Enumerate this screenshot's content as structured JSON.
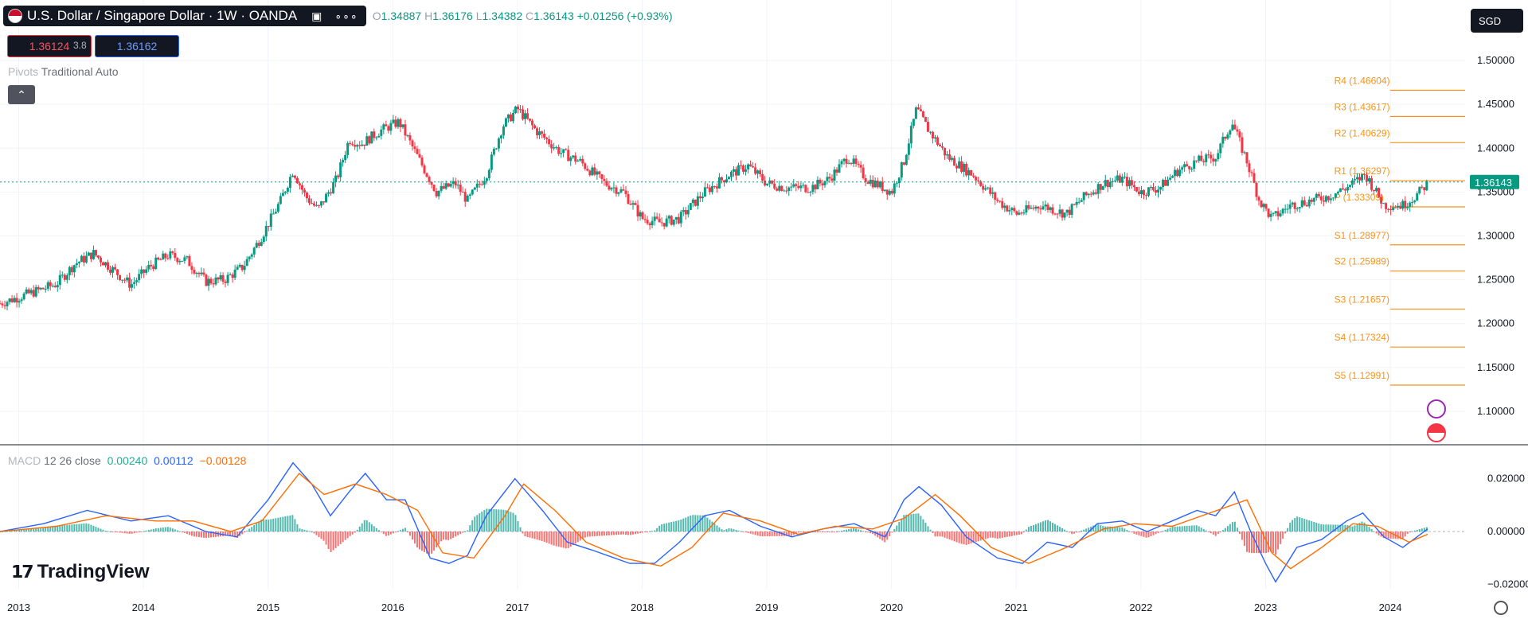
{
  "header": {
    "symbol_title": "U.S. Dollar / Singapore Dollar · 1W · OANDA",
    "ohlc": {
      "o_label": "O",
      "o": "1.34887",
      "h_label": "H",
      "h": "1.36176",
      "l_label": "L",
      "l": "1.34382",
      "c_label": "C",
      "c": "1.36143",
      "change": "+0.01256 (+0.93%)"
    },
    "sell_price": "1.36124",
    "spread": "3.8",
    "buy_price": "1.36162",
    "pivots_label": "Pivots",
    "pivots_params": "Traditional Auto",
    "currency": "SGD"
  },
  "macd_legend": {
    "name": "MACD",
    "params": "12 26 close",
    "hist": "0.00240",
    "macd": "0.00112",
    "signal": "−0.00128"
  },
  "watermark": "TradingView",
  "colors": {
    "up": "#089981",
    "down": "#f23645",
    "pivot": "#f7931a",
    "macd_line": "#2962ff",
    "signal_line": "#ff6d00",
    "current_price_bg": "#089981"
  },
  "chart_data": [
    {
      "type": "candlestick",
      "title": "U.S. Dollar / Singapore Dollar · 1W · OANDA",
      "x_ticks": [
        "2013",
        "2014",
        "2015",
        "2016",
        "2017",
        "2018",
        "2019",
        "2020",
        "2021",
        "2022",
        "2023",
        "2024"
      ],
      "y_ticks": [
        "1.50000",
        "1.45000",
        "1.40000",
        "1.35000",
        "1.30000",
        "1.25000",
        "1.20000",
        "1.15000",
        "1.10000"
      ],
      "ylim": [
        1.07,
        1.52
      ],
      "xlim": [
        2012.85,
        2024.6
      ],
      "current_price": "1.36143",
      "approx_close_path": [
        [
          2012.85,
          1.223
        ],
        [
          2013.1,
          1.235
        ],
        [
          2013.3,
          1.245
        ],
        [
          2013.45,
          1.268
        ],
        [
          2013.6,
          1.28
        ],
        [
          2013.75,
          1.262
        ],
        [
          2013.9,
          1.244
        ],
        [
          2014.05,
          1.265
        ],
        [
          2014.2,
          1.278
        ],
        [
          2014.35,
          1.272
        ],
        [
          2014.5,
          1.248
        ],
        [
          2014.65,
          1.25
        ],
        [
          2014.8,
          1.265
        ],
        [
          2014.95,
          1.3
        ],
        [
          2015.1,
          1.34
        ],
        [
          2015.2,
          1.375
        ],
        [
          2015.3,
          1.345
        ],
        [
          2015.4,
          1.33
        ],
        [
          2015.55,
          1.365
        ],
        [
          2015.65,
          1.41
        ],
        [
          2015.75,
          1.405
        ],
        [
          2015.9,
          1.42
        ],
        [
          2016.05,
          1.43
        ],
        [
          2016.2,
          1.39
        ],
        [
          2016.35,
          1.35
        ],
        [
          2016.5,
          1.36
        ],
        [
          2016.6,
          1.34
        ],
        [
          2016.75,
          1.37
        ],
        [
          2016.88,
          1.425
        ],
        [
          2017.0,
          1.445
        ],
        [
          2017.15,
          1.42
        ],
        [
          2017.35,
          1.395
        ],
        [
          2017.5,
          1.385
        ],
        [
          2017.7,
          1.36
        ],
        [
          2017.85,
          1.35
        ],
        [
          2018.0,
          1.32
        ],
        [
          2018.15,
          1.315
        ],
        [
          2018.3,
          1.32
        ],
        [
          2018.5,
          1.35
        ],
        [
          2018.7,
          1.37
        ],
        [
          2018.85,
          1.38
        ],
        [
          2019.0,
          1.36
        ],
        [
          2019.15,
          1.355
        ],
        [
          2019.35,
          1.355
        ],
        [
          2019.5,
          1.365
        ],
        [
          2019.65,
          1.39
        ],
        [
          2019.8,
          1.365
        ],
        [
          2020.0,
          1.35
        ],
        [
          2020.1,
          1.385
        ],
        [
          2020.2,
          1.445
        ],
        [
          2020.3,
          1.42
        ],
        [
          2020.45,
          1.39
        ],
        [
          2020.65,
          1.37
        ],
        [
          2020.85,
          1.34
        ],
        [
          2021.0,
          1.325
        ],
        [
          2021.2,
          1.335
        ],
        [
          2021.4,
          1.325
        ],
        [
          2021.55,
          1.345
        ],
        [
          2021.7,
          1.36
        ],
        [
          2021.85,
          1.365
        ],
        [
          2022.0,
          1.35
        ],
        [
          2022.15,
          1.355
        ],
        [
          2022.3,
          1.375
        ],
        [
          2022.45,
          1.385
        ],
        [
          2022.6,
          1.39
        ],
        [
          2022.73,
          1.43
        ],
        [
          2022.85,
          1.385
        ],
        [
          2022.95,
          1.34
        ],
        [
          2023.05,
          1.32
        ],
        [
          2023.2,
          1.335
        ],
        [
          2023.35,
          1.34
        ],
        [
          2023.5,
          1.345
        ],
        [
          2023.65,
          1.355
        ],
        [
          2023.8,
          1.37
        ],
        [
          2023.95,
          1.335
        ],
        [
          2024.1,
          1.335
        ],
        [
          2024.2,
          1.345
        ],
        [
          2024.3,
          1.36
        ]
      ],
      "pivots": [
        {
          "label": "R4 (1.46604)",
          "value": 1.46604
        },
        {
          "label": "R3 (1.43617)",
          "value": 1.43617
        },
        {
          "label": "R2 (1.40629)",
          "value": 1.40629
        },
        {
          "label": "R1 (1.36297)",
          "value": 1.36297
        },
        {
          "label": "P (1.33309)",
          "value": 1.33309
        },
        {
          "label": "S1 (1.28977)",
          "value": 1.28977
        },
        {
          "label": "S2 (1.25989)",
          "value": 1.25989
        },
        {
          "label": "S3 (1.21657)",
          "value": 1.21657
        },
        {
          "label": "S4 (1.17324)",
          "value": 1.17324
        },
        {
          "label": "S5 (1.12991)",
          "value": 1.12991
        }
      ]
    },
    {
      "type": "line",
      "title": "MACD 12 26 close",
      "y_ticks": [
        "0.02000",
        "0.00000",
        "−0.02000"
      ],
      "ylim": [
        -0.021,
        0.028
      ],
      "macd_points": [
        [
          2012.85,
          0.0
        ],
        [
          2013.2,
          0.003
        ],
        [
          2013.55,
          0.008
        ],
        [
          2013.9,
          0.004
        ],
        [
          2014.2,
          0.006
        ],
        [
          2014.5,
          0.0
        ],
        [
          2014.75,
          -0.002
        ],
        [
          2015.0,
          0.012
        ],
        [
          2015.2,
          0.026
        ],
        [
          2015.35,
          0.018
        ],
        [
          2015.5,
          0.006
        ],
        [
          2015.65,
          0.015
        ],
        [
          2015.78,
          0.022
        ],
        [
          2015.95,
          0.012
        ],
        [
          2016.1,
          0.012
        ],
        [
          2016.3,
          -0.01
        ],
        [
          2016.45,
          -0.012
        ],
        [
          2016.6,
          -0.009
        ],
        [
          2016.75,
          0.006
        ],
        [
          2016.98,
          0.02
        ],
        [
          2017.2,
          0.008
        ],
        [
          2017.4,
          -0.004
        ],
        [
          2017.6,
          -0.007
        ],
        [
          2017.9,
          -0.012
        ],
        [
          2018.1,
          -0.012
        ],
        [
          2018.3,
          -0.004
        ],
        [
          2018.5,
          0.006
        ],
        [
          2018.7,
          0.008
        ],
        [
          2018.95,
          0.002
        ],
        [
          2019.2,
          -0.002
        ],
        [
          2019.45,
          0.001
        ],
        [
          2019.7,
          0.003
        ],
        [
          2019.95,
          -0.002
        ],
        [
          2020.1,
          0.012
        ],
        [
          2020.22,
          0.017
        ],
        [
          2020.4,
          0.01
        ],
        [
          2020.6,
          -0.002
        ],
        [
          2020.85,
          -0.01
        ],
        [
          2021.05,
          -0.012
        ],
        [
          2021.25,
          -0.004
        ],
        [
          2021.45,
          -0.006
        ],
        [
          2021.65,
          0.003
        ],
        [
          2021.85,
          0.004
        ],
        [
          2022.05,
          0.0
        ],
        [
          2022.25,
          0.004
        ],
        [
          2022.45,
          0.008
        ],
        [
          2022.6,
          0.006
        ],
        [
          2022.75,
          0.015
        ],
        [
          2022.88,
          0.0
        ],
        [
          2023.0,
          -0.012
        ],
        [
          2023.08,
          -0.019
        ],
        [
          2023.25,
          -0.006
        ],
        [
          2023.45,
          -0.003
        ],
        [
          2023.65,
          0.004
        ],
        [
          2023.78,
          0.007
        ],
        [
          2023.95,
          -0.002
        ],
        [
          2024.1,
          -0.006
        ],
        [
          2024.3,
          0.001
        ]
      ],
      "signal_points": [
        [
          2012.85,
          0.0
        ],
        [
          2013.3,
          0.002
        ],
        [
          2013.7,
          0.006
        ],
        [
          2014.1,
          0.004
        ],
        [
          2014.4,
          0.004
        ],
        [
          2014.7,
          0.0
        ],
        [
          2014.95,
          0.004
        ],
        [
          2015.25,
          0.022
        ],
        [
          2015.45,
          0.014
        ],
        [
          2015.7,
          0.018
        ],
        [
          2015.95,
          0.014
        ],
        [
          2016.2,
          0.008
        ],
        [
          2016.4,
          -0.008
        ],
        [
          2016.65,
          -0.01
        ],
        [
          2016.9,
          0.006
        ],
        [
          2017.05,
          0.018
        ],
        [
          2017.3,
          0.008
        ],
        [
          2017.55,
          -0.004
        ],
        [
          2017.85,
          -0.01
        ],
        [
          2018.15,
          -0.013
        ],
        [
          2018.4,
          -0.006
        ],
        [
          2018.65,
          0.007
        ],
        [
          2018.95,
          0.004
        ],
        [
          2019.25,
          -0.001
        ],
        [
          2019.55,
          0.002
        ],
        [
          2019.85,
          0.001
        ],
        [
          2020.1,
          0.005
        ],
        [
          2020.35,
          0.014
        ],
        [
          2020.55,
          0.006
        ],
        [
          2020.8,
          -0.006
        ],
        [
          2021.1,
          -0.012
        ],
        [
          2021.4,
          -0.006
        ],
        [
          2021.7,
          0.001
        ],
        [
          2021.95,
          0.003
        ],
        [
          2022.25,
          0.002
        ],
        [
          2022.55,
          0.007
        ],
        [
          2022.85,
          0.012
        ],
        [
          2023.05,
          -0.008
        ],
        [
          2023.2,
          -0.014
        ],
        [
          2023.45,
          -0.006
        ],
        [
          2023.7,
          0.003
        ],
        [
          2023.9,
          0.002
        ],
        [
          2024.15,
          -0.004
        ],
        [
          2024.3,
          -0.001
        ]
      ]
    }
  ]
}
